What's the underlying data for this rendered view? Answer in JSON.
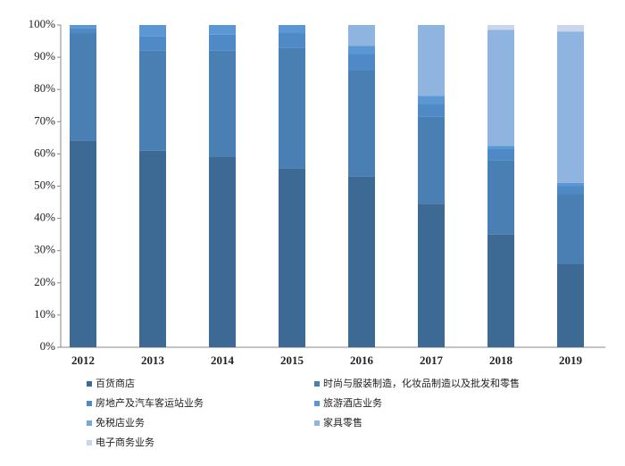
{
  "chart_data": {
    "type": "stacked-bar-100",
    "categories": [
      "2012",
      "2013",
      "2014",
      "2015",
      "2016",
      "2017",
      "2018",
      "2019"
    ],
    "series": [
      {
        "name": "百货商店",
        "color": "#3d6a95",
        "values": [
          64,
          61,
          59,
          55.5,
          53,
          44.5,
          35,
          26
        ]
      },
      {
        "name": "时尚与服装制造，化妆品制造以及批发和零售",
        "color": "#4a7fb3",
        "values": [
          33.5,
          31,
          33,
          37.5,
          33,
          27,
          23,
          21.5
        ]
      },
      {
        "name": "房地产及汽车客运站业务",
        "color": "#4f8ac6",
        "values": [
          1.5,
          4.5,
          5,
          4.5,
          5,
          4,
          3.5,
          2.5
        ]
      },
      {
        "name": "旅游酒店业务",
        "color": "#5b98d3",
        "values": [
          1,
          3.5,
          3,
          2.5,
          2.5,
          2.5,
          1,
          1
        ]
      },
      {
        "name": "免税店业务",
        "color": "#72a9dc",
        "values": [
          0,
          0,
          0,
          0,
          0,
          0,
          0,
          0
        ]
      },
      {
        "name": "家具零售",
        "color": "#8fb4e0",
        "values": [
          0,
          0,
          0,
          0,
          6.5,
          22,
          36,
          47
        ]
      },
      {
        "name": "电子商务业务",
        "color": "#c9d6ec",
        "values": [
          0,
          0,
          0,
          0,
          0,
          0,
          1.5,
          2
        ]
      }
    ],
    "ylim": [
      0,
      100
    ],
    "yticks": [
      {
        "value": 0,
        "label": "0%"
      },
      {
        "value": 10,
        "label": "10%"
      },
      {
        "value": 20,
        "label": "20%"
      },
      {
        "value": 30,
        "label": "30%"
      },
      {
        "value": 40,
        "label": "40%"
      },
      {
        "value": 50,
        "label": "50%"
      },
      {
        "value": 60,
        "label": "60%"
      },
      {
        "value": 70,
        "label": "70%"
      },
      {
        "value": 80,
        "label": "80%"
      },
      {
        "value": 90,
        "label": "90%"
      },
      {
        "value": 100,
        "label": "100%"
      }
    ],
    "grid": false
  }
}
